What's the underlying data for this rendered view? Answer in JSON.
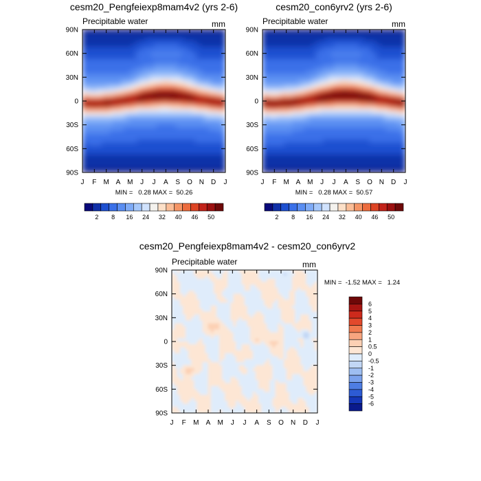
{
  "chart_data": [
    {
      "type": "heatmap",
      "id": "p1",
      "title": "cesm20_Pengfeiexp8mam4v2 (yrs 2-6)",
      "left_label": "Precipitable water",
      "units": "mm",
      "x_ticks": [
        "J",
        "F",
        "M",
        "A",
        "M",
        "J",
        "J",
        "A",
        "S",
        "O",
        "N",
        "D",
        "J"
      ],
      "y_ticks": [
        "90N",
        "60N",
        "30N",
        "0",
        "30S",
        "60S",
        "90S"
      ],
      "stats_text": "MIN =   0.28 MAX =  50.26",
      "min": 0.28,
      "max": 50.26,
      "colorbar_labels": [
        "2",
        "8",
        "16",
        "24",
        "32",
        "40",
        "46",
        "50"
      ],
      "field": "climatology"
    },
    {
      "type": "heatmap",
      "id": "p2",
      "title": "cesm20_con6yrv2 (yrs 2-6)",
      "left_label": "Precipitable water",
      "units": "mm",
      "x_ticks": [
        "J",
        "F",
        "M",
        "A",
        "M",
        "J",
        "J",
        "A",
        "S",
        "O",
        "N",
        "D",
        "J"
      ],
      "y_ticks": [
        "90N",
        "60N",
        "30N",
        "0",
        "30S",
        "60S",
        "90S"
      ],
      "stats_text": "MIN =   0.28 MAX =  50.57",
      "min": 0.28,
      "max": 50.57,
      "colorbar_labels": [
        "2",
        "8",
        "16",
        "24",
        "32",
        "40",
        "46",
        "50"
      ],
      "field": "climatology"
    },
    {
      "type": "heatmap",
      "id": "p3",
      "title": "cesm20_Pengfeiexp8mam4v2 - cesm20_con6yrv2",
      "left_label": "Precipitable water",
      "units": "mm",
      "x_ticks": [
        "J",
        "F",
        "M",
        "A",
        "M",
        "J",
        "J",
        "A",
        "S",
        "O",
        "N",
        "D",
        "J"
      ],
      "y_ticks": [
        "90N",
        "60N",
        "30N",
        "0",
        "30S",
        "60S",
        "90S"
      ],
      "stats_text": "MIN =  -1.52 MAX =   1.24",
      "min": -1.52,
      "max": 1.24,
      "colorbar_labels": [
        "6",
        "5",
        "4",
        "3",
        "2",
        "1",
        "0.5",
        "0",
        "-0.5",
        "-1",
        "-2",
        "-3",
        "-4",
        "-5",
        "-6"
      ],
      "field": "difference"
    }
  ],
  "palettes": {
    "climatology": [
      "#0a0a7a",
      "#1030a8",
      "#1e50d0",
      "#3a70e8",
      "#5a8ef2",
      "#7eabf7",
      "#a6c8fb",
      "#d0e2fd",
      "#f4f2ee",
      "#fde0c8",
      "#fbbe98",
      "#f59566",
      "#ec6c3e",
      "#dd4424",
      "#c2231a",
      "#9c1010",
      "#6e0808"
    ],
    "difference": [
      "#6e0808",
      "#a71512",
      "#cd2a1c",
      "#e2492c",
      "#f07a4f",
      "#f7a57f",
      "#fcd0b4",
      "#fde6d4",
      "#dfecfb",
      "#c2d7f5",
      "#9ebef1",
      "#7ba2ec",
      "#4e7de3",
      "#2d5bd4",
      "#1537b8",
      "#0a1a8c"
    ]
  }
}
